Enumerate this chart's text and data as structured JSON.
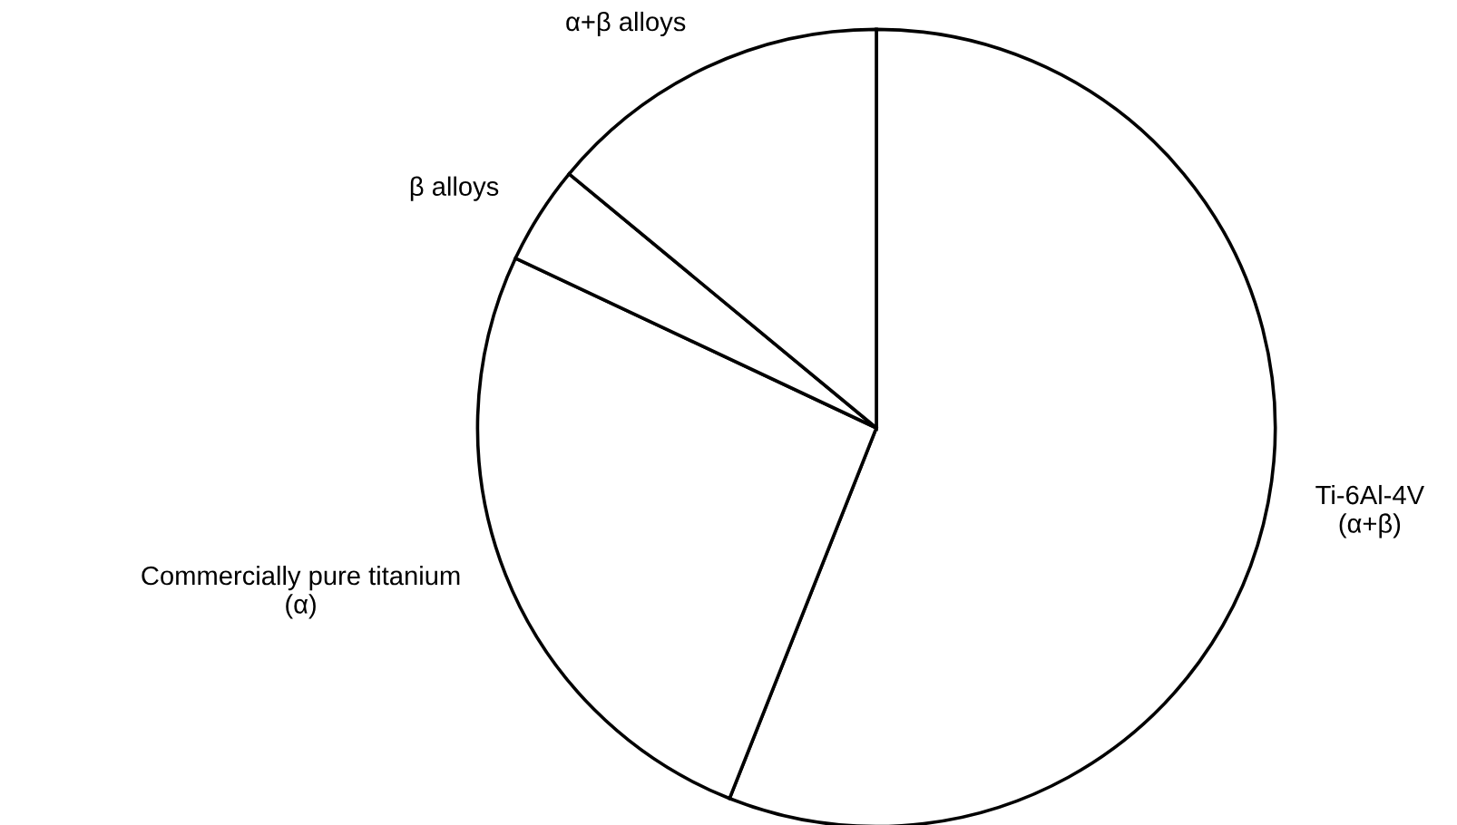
{
  "chart_data": {
    "type": "pie",
    "categories": [
      "Ti-6Al-4V\n(α+β)",
      "Commercially pure titanium\n(α)",
      "β alloys",
      "α+β alloys"
    ],
    "values": [
      56,
      26,
      4,
      14
    ],
    "colors": [
      "#ffffff",
      "#ffffff",
      "#ffffff",
      "#ffffff"
    ],
    "legend": false
  }
}
